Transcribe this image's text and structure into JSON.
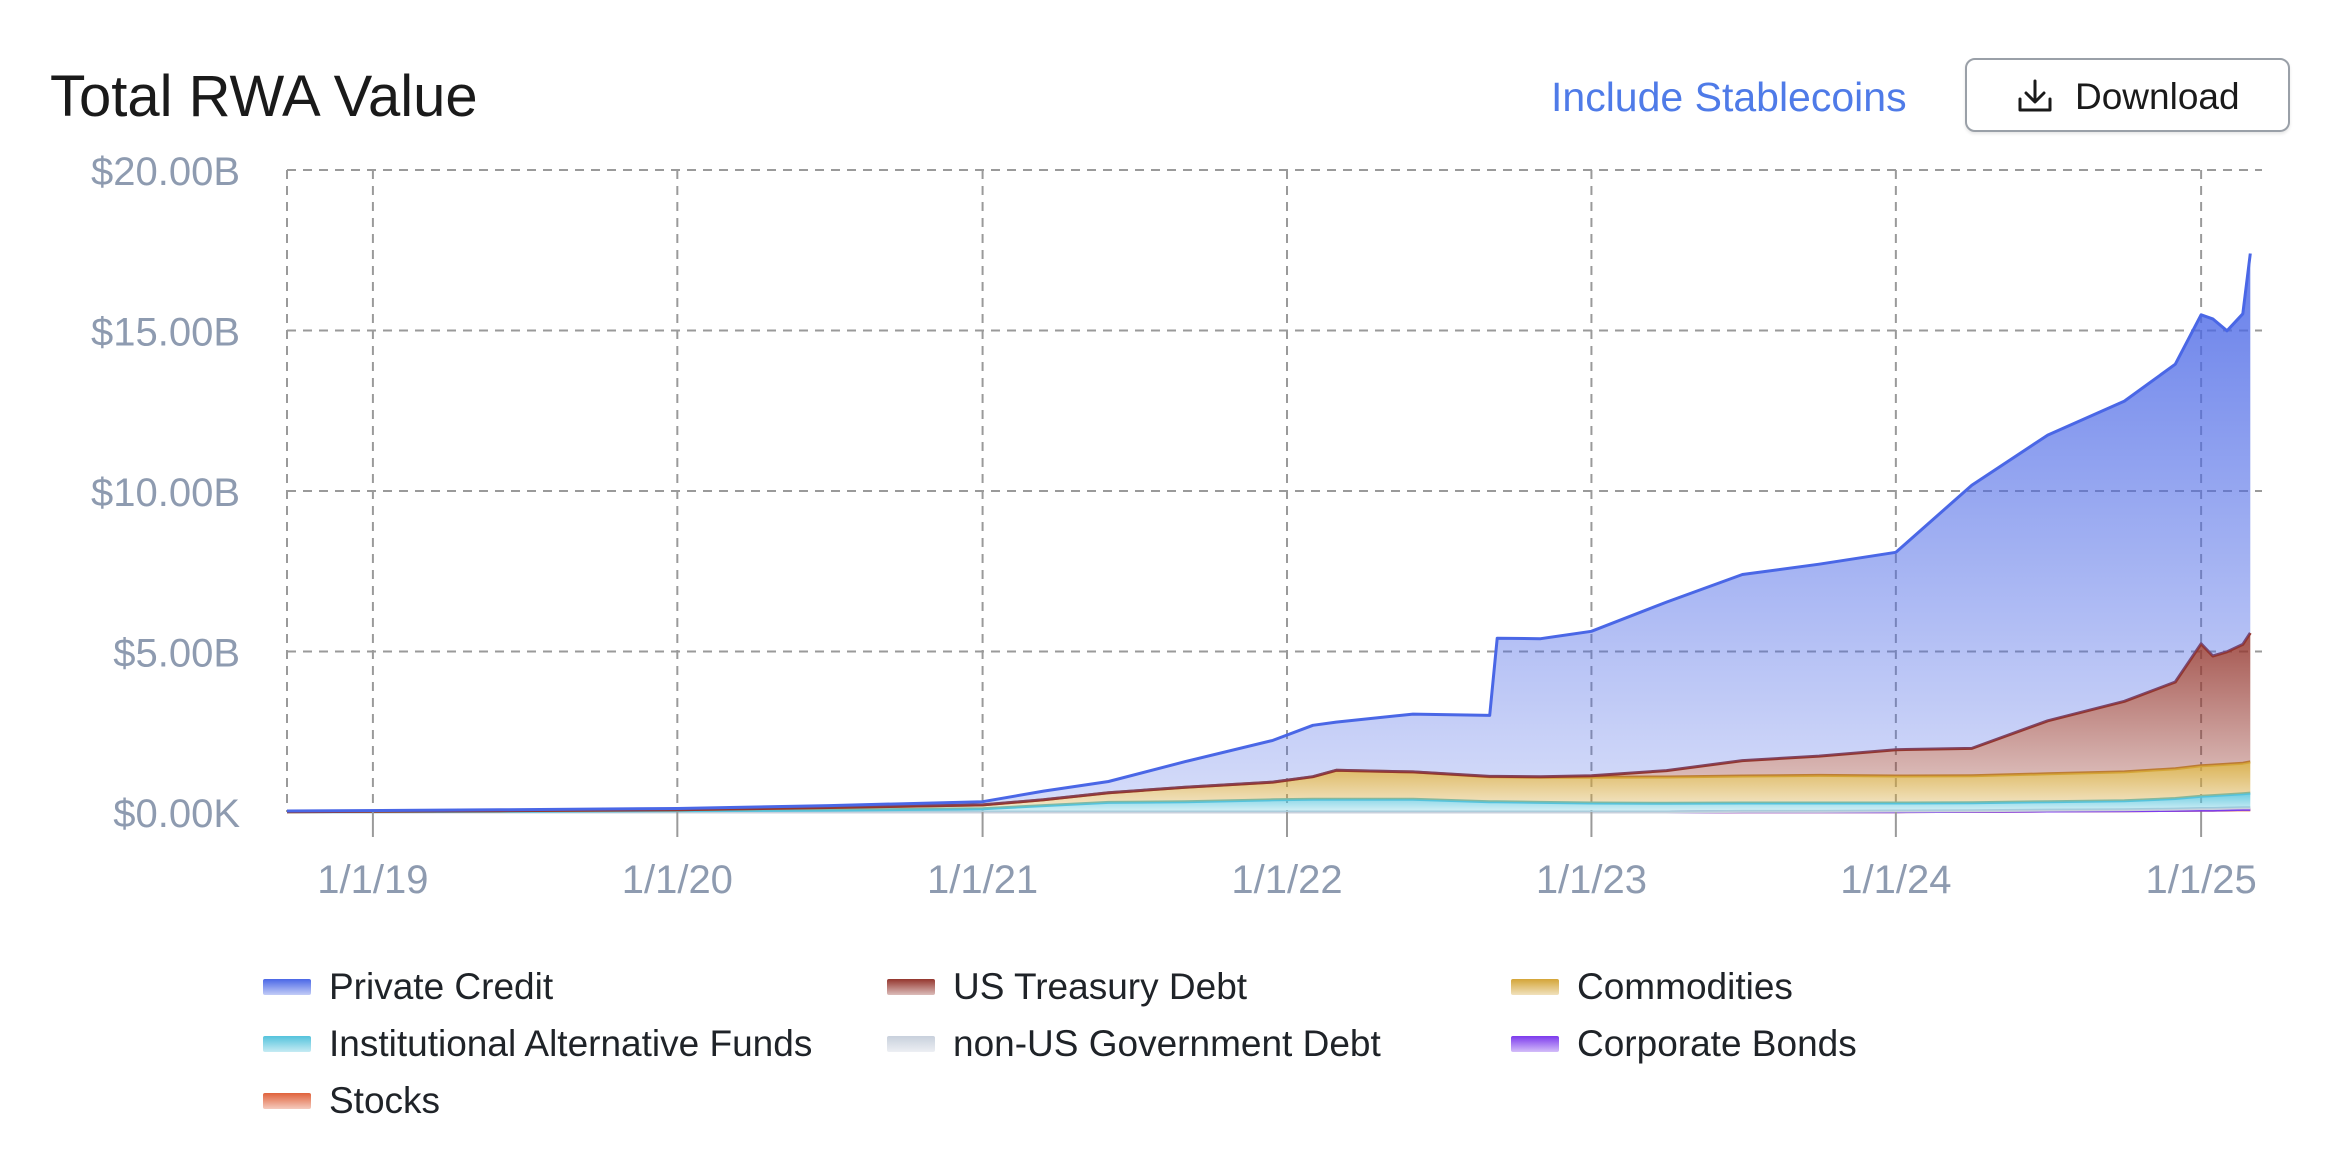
{
  "header": {
    "title": "Total RWA Value",
    "include_stablecoins_label": "Include Stablecoins",
    "download_label": "Download"
  },
  "chart_data": {
    "type": "area",
    "stacked": true,
    "title": "Total RWA Value",
    "xlabel": "",
    "ylabel": "",
    "x_tick_labels": [
      "1/1/19",
      "1/1/20",
      "1/1/21",
      "1/1/22",
      "1/1/23",
      "1/1/24",
      "1/1/25"
    ],
    "y_tick_labels": [
      "$0.00K",
      "$5.00B",
      "$10.00B",
      "$15.00B",
      "$20.00B"
    ],
    "y_unit": "billions USD",
    "ylim": [
      0,
      20
    ],
    "xlim": [
      "2018-09-20",
      "2025-03-15"
    ],
    "grid": true,
    "legend_position": "bottom",
    "x": [
      "2018-09-20",
      "2019-06-01",
      "2020-01-01",
      "2020-07-01",
      "2021-01-01",
      "2021-03-15",
      "2021-06-01",
      "2021-09-01",
      "2021-12-15",
      "2022-02-01",
      "2022-03-01",
      "2022-06-01",
      "2022-09-01",
      "2022-09-10",
      "2022-11-01",
      "2023-01-01",
      "2023-04-01",
      "2023-07-01",
      "2023-10-01",
      "2024-01-01",
      "2024-04-01",
      "2024-07-01",
      "2024-10-01",
      "2024-12-01",
      "2025-01-01",
      "2025-01-15",
      "2025-02-01",
      "2025-02-20",
      "2025-03-01"
    ],
    "series": [
      {
        "name": "Stocks",
        "color": "#e0623b",
        "values": [
          0,
          0,
          0,
          0,
          0,
          0,
          0,
          0,
          0,
          0,
          0,
          0,
          0,
          0,
          0,
          0,
          0,
          0.01,
          0.01,
          0.01,
          0.02,
          0.03,
          0.04,
          0.05,
          0.06,
          0.06,
          0.07,
          0.08,
          0.08
        ]
      },
      {
        "name": "Corporate Bonds",
        "color": "#7c3aed",
        "values": [
          0,
          0,
          0,
          0,
          0,
          0,
          0,
          0,
          0,
          0,
          0,
          0,
          0,
          0,
          0,
          0,
          0,
          0,
          0,
          0,
          0,
          0,
          0,
          0,
          0,
          0,
          0,
          0,
          0
        ]
      },
      {
        "name": "non-US Government Debt",
        "color": "#c8d0dc",
        "values": [
          0,
          0,
          0,
          0,
          0,
          0,
          0,
          0,
          0,
          0,
          0,
          0,
          0,
          0,
          0,
          0,
          0,
          0.01,
          0.01,
          0.02,
          0.02,
          0.03,
          0.03,
          0.04,
          0.05,
          0.05,
          0.05,
          0.05,
          0.05
        ]
      },
      {
        "name": "Institutional Alternative Funds",
        "color": "#54c3dc",
        "values": [
          0.01,
          0.02,
          0.04,
          0.06,
          0.1,
          0.2,
          0.3,
          0.32,
          0.38,
          0.4,
          0.4,
          0.4,
          0.32,
          0.32,
          0.3,
          0.28,
          0.27,
          0.26,
          0.26,
          0.25,
          0.25,
          0.26,
          0.28,
          0.33,
          0.38,
          0.4,
          0.42,
          0.44,
          0.46
        ]
      },
      {
        "name": "Commodities",
        "color": "#d4a537",
        "values": [
          0,
          0.02,
          0.03,
          0.08,
          0.12,
          0.18,
          0.3,
          0.45,
          0.55,
          0.7,
          0.9,
          0.85,
          0.78,
          0.78,
          0.78,
          0.8,
          0.82,
          0.84,
          0.86,
          0.84,
          0.84,
          0.87,
          0.9,
          0.93,
          0.95,
          0.95,
          0.95,
          0.95,
          0.97
        ]
      },
      {
        "name": "US Treasury Debt",
        "color": "#94362e",
        "values": [
          0,
          0,
          0,
          0,
          0,
          0,
          0,
          0,
          0,
          0,
          0,
          0,
          0.01,
          0.01,
          0.02,
          0.05,
          0.2,
          0.48,
          0.6,
          0.82,
          0.85,
          1.65,
          2.2,
          2.7,
          3.8,
          3.4,
          3.5,
          3.7,
          4.02
        ]
      },
      {
        "name": "Private Credit",
        "color": "#4a67e6",
        "values": [
          0.02,
          0.03,
          0.04,
          0.06,
          0.1,
          0.27,
          0.35,
          0.8,
          1.3,
          1.6,
          1.5,
          1.8,
          1.9,
          4.3,
          4.3,
          4.5,
          5.25,
          5.8,
          5.98,
          6.15,
          8.2,
          8.9,
          9.35,
          9.9,
          10.25,
          10.5,
          10.0,
          10.3,
          11.82
        ]
      }
    ],
    "legend": [
      {
        "label": "Private Credit",
        "color": "#4a67e6"
      },
      {
        "label": "US Treasury Debt",
        "color": "#94362e"
      },
      {
        "label": "Commodities",
        "color": "#d4a537"
      },
      {
        "label": "Institutional Alternative Funds",
        "color": "#54c3dc"
      },
      {
        "label": "non-US Government Debt",
        "color": "#c8d0dc"
      },
      {
        "label": "Corporate Bonds",
        "color": "#7c3aed"
      },
      {
        "label": "Stocks",
        "color": "#e0623b"
      }
    ]
  }
}
